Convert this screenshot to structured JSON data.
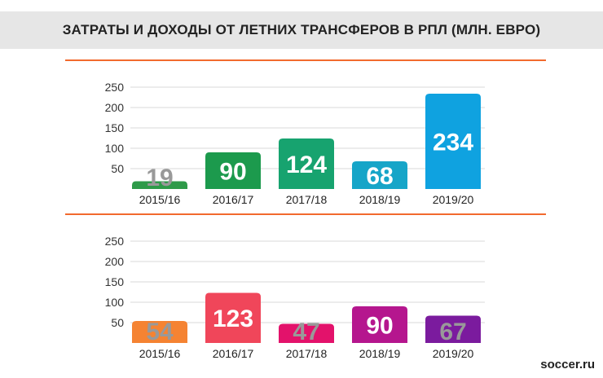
{
  "title": "ЗАТРАТЫ И ДОХОДЫ ОТ ЛЕТНИХ ТРАНСФЕРОВ В РПЛ (МЛН. ЕВРО)",
  "source": "soccer.ru",
  "colors": {
    "divider": "#f26a2e",
    "grid": "#d9d9d9",
    "label_light": "#999999"
  },
  "chart_data": [
    {
      "type": "bar",
      "categories": [
        "2015/16",
        "2016/17",
        "2017/18",
        "2018/19",
        "2019/20"
      ],
      "values": [
        19,
        90,
        124,
        68,
        234
      ],
      "colors": [
        "#2e9a49",
        "#1c9a4d",
        "#17a36f",
        "#16a5c8",
        "#0fa2e0"
      ],
      "yticks": [
        50,
        100,
        150,
        200,
        250
      ],
      "ylim": [
        0,
        250
      ],
      "title": "",
      "xlabel": "",
      "ylabel": ""
    },
    {
      "type": "bar",
      "categories": [
        "2015/16",
        "2016/17",
        "2017/18",
        "2018/19",
        "2019/20"
      ],
      "values": [
        54,
        123,
        47,
        90,
        67
      ],
      "colors": [
        "#f58332",
        "#f0465a",
        "#e3126b",
        "#b5168e",
        "#7b1b9e"
      ],
      "yticks": [
        50,
        100,
        150,
        200,
        250
      ],
      "ylim": [
        0,
        250
      ],
      "title": "",
      "xlabel": "",
      "ylabel": ""
    }
  ]
}
